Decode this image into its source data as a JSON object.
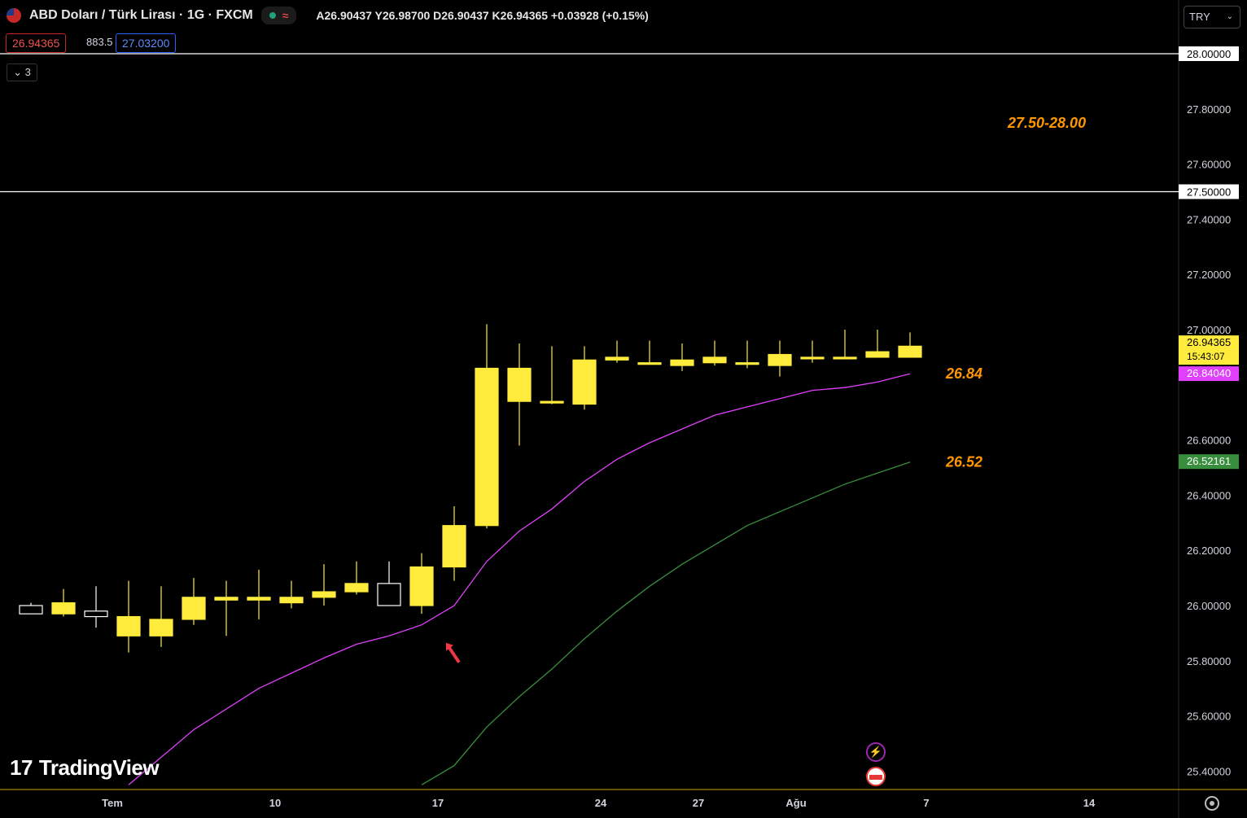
{
  "header": {
    "title": "ABD Doları / Türk Lirası · 1G · FXCM",
    "ohlc": "A26.90437 Y26.98700 D26.90437 K26.94365 +0.03928 (+0.15%)",
    "sell_price": "26.94365",
    "spread": "883.5",
    "buy_price": "27.03200",
    "legend_count": "3",
    "currency": "TRY"
  },
  "watermark": "TradingView",
  "colors": {
    "bull_candle": "#ffeb3b",
    "bear_candle": "#000000",
    "candle_outline": "#ffffff",
    "ma_short": "#e040fb",
    "ma_long": "#388e3c",
    "annotation": "#ff9800",
    "arrow": "#f23645"
  },
  "chart_data": {
    "type": "candlestick",
    "ylim": [
      25.35,
      28.15
    ],
    "y_ticks": [
      "27.80000",
      "27.60000",
      "27.40000",
      "27.20000",
      "27.00000",
      "26.60000",
      "26.40000",
      "26.20000",
      "26.00000",
      "25.80000",
      "25.60000",
      "25.40000"
    ],
    "x_ticks": [
      {
        "label": "Tem",
        "x": 2.5
      },
      {
        "label": "10",
        "x": 7.5
      },
      {
        "label": "17",
        "x": 12.5
      },
      {
        "label": "24",
        "x": 17.5
      },
      {
        "label": "27",
        "x": 20.5
      },
      {
        "label": "Ağu",
        "x": 23.5
      },
      {
        "label": "7",
        "x": 27.5
      },
      {
        "label": "14",
        "x": 32.5
      }
    ],
    "candles": [
      {
        "x": 0,
        "o": 26.0,
        "h": 26.01,
        "l": 25.99,
        "c": 25.97
      },
      {
        "x": 1,
        "o": 25.97,
        "h": 26.06,
        "l": 25.96,
        "c": 26.01
      },
      {
        "x": 2,
        "o": 25.98,
        "h": 26.07,
        "l": 25.92,
        "c": 25.96
      },
      {
        "x": 3,
        "o": 25.89,
        "h": 26.09,
        "l": 25.83,
        "c": 25.96
      },
      {
        "x": 4,
        "o": 25.89,
        "h": 26.07,
        "l": 25.85,
        "c": 25.95
      },
      {
        "x": 5,
        "o": 25.95,
        "h": 26.1,
        "l": 25.93,
        "c": 26.03
      },
      {
        "x": 6,
        "o": 26.02,
        "h": 26.09,
        "l": 25.89,
        "c": 26.03
      },
      {
        "x": 7,
        "o": 26.02,
        "h": 26.13,
        "l": 25.95,
        "c": 26.03
      },
      {
        "x": 8,
        "o": 26.01,
        "h": 26.09,
        "l": 25.99,
        "c": 26.03
      },
      {
        "x": 9,
        "o": 26.03,
        "h": 26.15,
        "l": 26.0,
        "c": 26.05
      },
      {
        "x": 10,
        "o": 26.05,
        "h": 26.16,
        "l": 26.04,
        "c": 26.08
      },
      {
        "x": 11,
        "o": 26.08,
        "h": 26.16,
        "l": 26.0,
        "c": 26.0
      },
      {
        "x": 12,
        "o": 26.0,
        "h": 26.19,
        "l": 25.97,
        "c": 26.14
      },
      {
        "x": 13,
        "o": 26.14,
        "h": 26.36,
        "l": 26.09,
        "c": 26.29
      },
      {
        "x": 14,
        "o": 26.29,
        "h": 27.02,
        "l": 26.28,
        "c": 26.86
      },
      {
        "x": 15,
        "o": 26.74,
        "h": 26.95,
        "l": 26.58,
        "c": 26.86
      },
      {
        "x": 16,
        "o": 26.74,
        "h": 26.94,
        "l": 26.73,
        "c": 26.74
      },
      {
        "x": 17,
        "o": 26.73,
        "h": 26.94,
        "l": 26.71,
        "c": 26.89
      },
      {
        "x": 18,
        "o": 26.89,
        "h": 26.96,
        "l": 26.88,
        "c": 26.9
      },
      {
        "x": 19,
        "o": 26.88,
        "h": 26.96,
        "l": 26.88,
        "c": 26.88
      },
      {
        "x": 20,
        "o": 26.87,
        "h": 26.95,
        "l": 26.85,
        "c": 26.89
      },
      {
        "x": 21,
        "o": 26.88,
        "h": 26.96,
        "l": 26.87,
        "c": 26.9
      },
      {
        "x": 22,
        "o": 26.88,
        "h": 26.96,
        "l": 26.86,
        "c": 26.88
      },
      {
        "x": 23,
        "o": 26.87,
        "h": 26.96,
        "l": 26.83,
        "c": 26.91
      },
      {
        "x": 24,
        "o": 26.9,
        "h": 26.96,
        "l": 26.88,
        "c": 26.9
      },
      {
        "x": 25,
        "o": 26.9,
        "h": 27.0,
        "l": 26.9,
        "c": 26.9
      },
      {
        "x": 26,
        "o": 26.9,
        "h": 27.0,
        "l": 26.9,
        "c": 26.92
      },
      {
        "x": 27,
        "o": 26.9,
        "h": 26.99,
        "l": 26.9,
        "c": 26.94
      }
    ],
    "series": [
      {
        "values": [
          [
            3,
            25.35
          ],
          [
            5,
            25.55
          ],
          [
            7,
            25.7
          ],
          [
            9,
            25.81
          ],
          [
            10,
            25.86
          ],
          [
            11,
            25.89
          ],
          [
            12,
            25.93
          ],
          [
            13,
            26.0
          ],
          [
            14,
            26.16
          ],
          [
            15,
            26.27
          ],
          [
            16,
            26.35
          ],
          [
            17,
            26.45
          ],
          [
            18,
            26.53
          ],
          [
            19,
            26.59
          ],
          [
            20,
            26.64
          ],
          [
            21,
            26.69
          ],
          [
            22,
            26.72
          ],
          [
            23,
            26.75
          ],
          [
            24,
            26.78
          ],
          [
            25,
            26.79
          ],
          [
            26,
            26.81
          ],
          [
            27,
            26.84
          ]
        ]
      },
      {
        "values": [
          [
            12,
            25.35
          ],
          [
            13,
            25.42
          ],
          [
            14,
            25.56
          ],
          [
            15,
            25.67
          ],
          [
            16,
            25.77
          ],
          [
            17,
            25.88
          ],
          [
            18,
            25.98
          ],
          [
            19,
            26.07
          ],
          [
            20,
            26.15
          ],
          [
            21,
            26.22
          ],
          [
            22,
            26.29
          ],
          [
            23,
            26.34
          ],
          [
            24,
            26.39
          ],
          [
            25,
            26.44
          ],
          [
            26,
            26.48
          ],
          [
            27,
            26.52
          ]
        ]
      }
    ],
    "horizontal_lines": [
      {
        "y": 28.0,
        "label": "28.00000"
      },
      {
        "y": 27.5,
        "label": "27.50000"
      }
    ],
    "price_tags": [
      {
        "y": 26.94365,
        "label": "26.94365",
        "sublabel": "15:43:07",
        "bg": "#ffeb3b",
        "fg": "#000000"
      },
      {
        "y": 26.8404,
        "label": "26.84040",
        "bg": "#e040fb",
        "fg": "#ffffff"
      },
      {
        "y": 26.52161,
        "label": "26.52161",
        "bg": "#388e3c",
        "fg": "#ffffff"
      }
    ],
    "annotations": [
      {
        "text": "27.50-28.00",
        "x": 30.0,
        "y": 27.75
      },
      {
        "text": "26.84",
        "x": 28.1,
        "y": 26.84
      },
      {
        "text": "26.52",
        "x": 28.1,
        "y": 26.52
      }
    ],
    "arrow": {
      "x": 13.0,
      "y": 25.8
    }
  }
}
